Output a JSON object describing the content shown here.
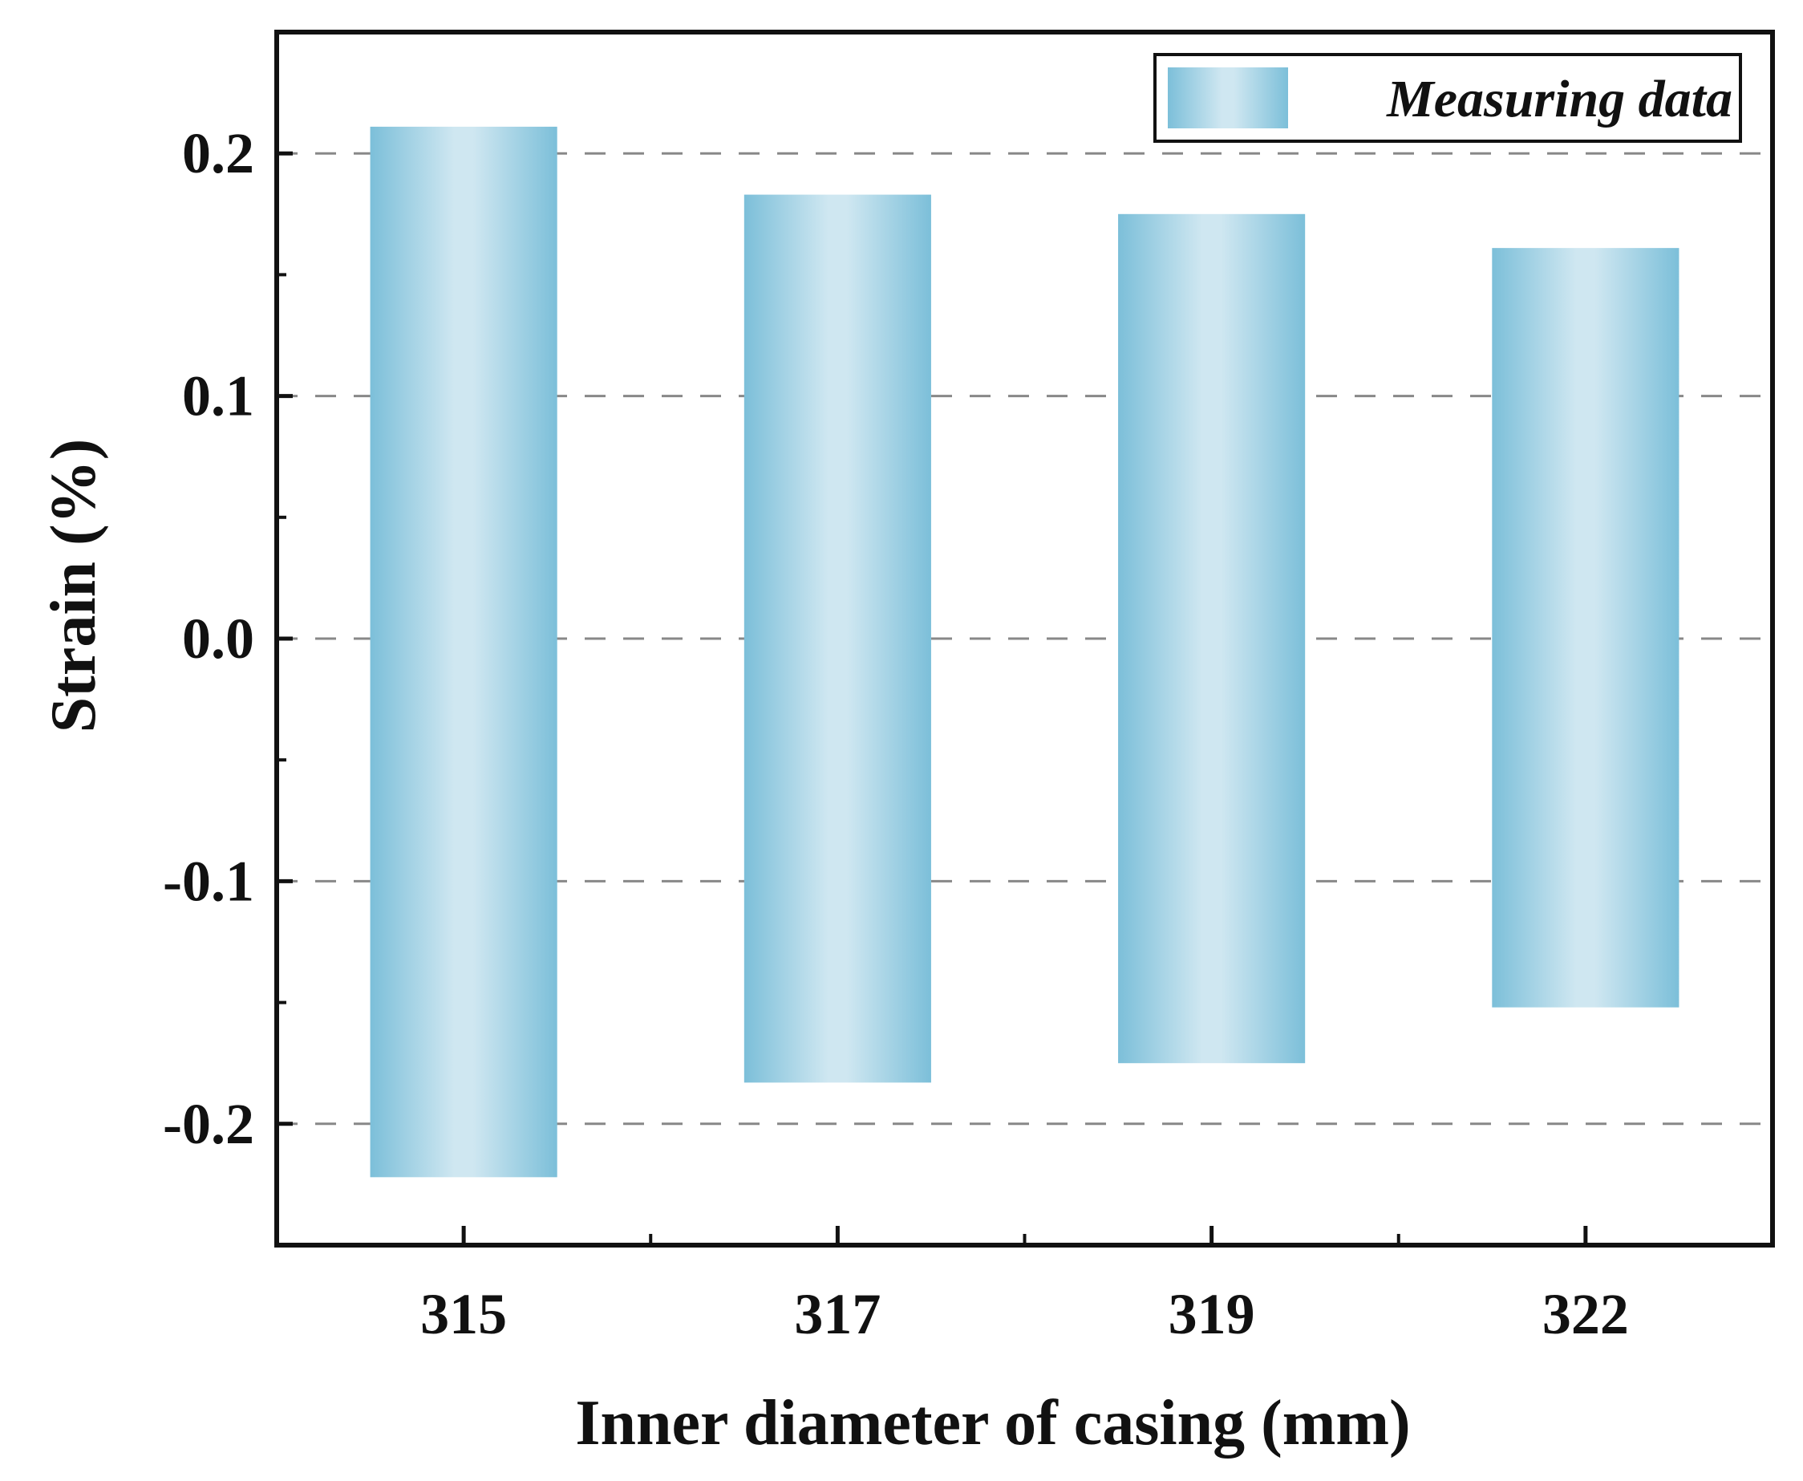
{
  "chart_data": {
    "type": "floating-bar",
    "title": "",
    "xlabel": "Inner diameter of casing (mm)",
    "ylabel": "Strain (%)",
    "categories": [
      "315",
      "317",
      "319",
      "322"
    ],
    "series": [
      {
        "name": "Measuring data",
        "low": [
          -0.222,
          -0.183,
          -0.175,
          -0.152
        ],
        "high": [
          0.211,
          0.183,
          0.175,
          0.161
        ]
      }
    ],
    "ylim": [
      -0.25,
      0.25
    ],
    "yticks": [
      -0.2,
      -0.1,
      0.0,
      0.1,
      0.2
    ],
    "ytick_labels": [
      "-0.2",
      "-0.1",
      "0.0",
      "0.1",
      "0.2"
    ],
    "grid": "horizontal-dashed",
    "legend_position": "top-right",
    "colors": {
      "bar_edge": "#7cbfd9",
      "bar_center": "#cfe7f1",
      "axis": "#111111",
      "grid": "#888888"
    }
  }
}
